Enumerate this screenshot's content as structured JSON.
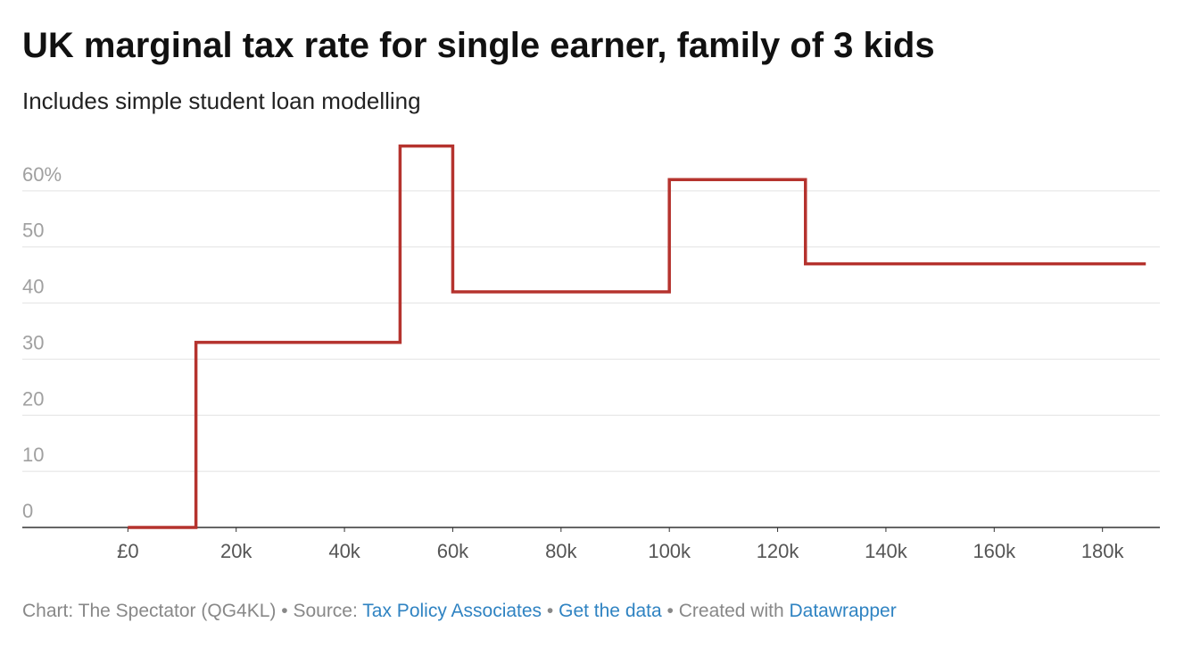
{
  "chart_data": {
    "type": "line",
    "step": true,
    "title": "UK marginal tax rate for single earner, family of 3 kids",
    "subtitle": "Includes simple student loan modelling",
    "x": [
      0,
      12570,
      12570,
      50270,
      50270,
      60000,
      60000,
      100000,
      100000,
      125140,
      125140,
      188000
    ],
    "values": [
      0,
      0,
      33,
      33,
      68,
      68,
      42,
      42,
      62,
      62,
      47,
      47
    ],
    "color": "#b5332e",
    "xlim": [
      -19500,
      190600
    ],
    "xticks": [
      {
        "value": 0,
        "label": "£0"
      },
      {
        "value": 20000,
        "label": "20k"
      },
      {
        "value": 40000,
        "label": "40k"
      },
      {
        "value": 60000,
        "label": "60k"
      },
      {
        "value": 80000,
        "label": "80k"
      },
      {
        "value": 100000,
        "label": "100k"
      },
      {
        "value": 120000,
        "label": "120k"
      },
      {
        "value": 140000,
        "label": "140k"
      },
      {
        "value": 160000,
        "label": "160k"
      },
      {
        "value": 180000,
        "label": "180k"
      }
    ],
    "ylim": [
      0,
      70
    ],
    "yticks": [
      0,
      10,
      20,
      30,
      40,
      50,
      {
        "value": 60,
        "label": "60%"
      }
    ],
    "grid": true
  },
  "footer": {
    "credit": "Chart: The Spectator (QG4KL)",
    "separator": "•",
    "source_label": "Source:",
    "source": "Tax Policy Associates",
    "get_data": "Get the data",
    "created": "Created with",
    "tool": "Datawrapper"
  }
}
